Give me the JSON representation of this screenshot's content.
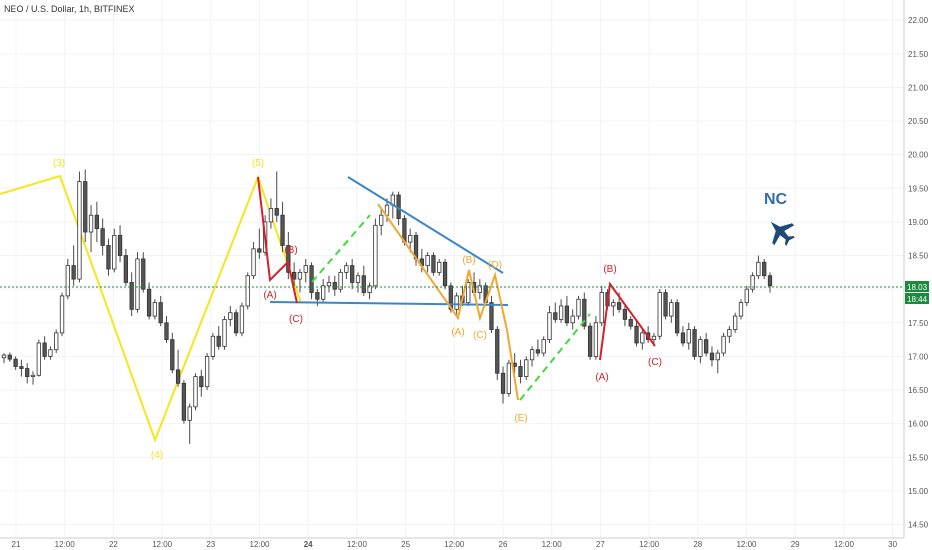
{
  "header": {
    "title": "NEO / U.S. Dollar, 1h, BITFINEX"
  },
  "chart_data": {
    "type": "candlestick",
    "title": "NEO / U.S. Dollar, 1h, BITFINEX",
    "ylim": [
      14.3,
      22.3
    ],
    "y_ticks": [
      "22.00",
      "21.50",
      "21.00",
      "20.50",
      "20.00",
      "19.50",
      "19.00",
      "18.50",
      "18.00",
      "17.50",
      "17.00",
      "16.50",
      "16.00",
      "15.50",
      "15.00",
      "14.50"
    ],
    "x_ticks": [
      "21",
      "12:00",
      "22",
      "12:00",
      "23",
      "12:00",
      "24",
      "12:00",
      "25",
      "12:00",
      "26",
      "12:00",
      "27",
      "12:00",
      "28",
      "12:00",
      "29",
      "12:00",
      "30"
    ],
    "current_price": "18.03",
    "countdown": "18:44",
    "colors": {
      "up": "#26a69a",
      "down": "#ef5350",
      "yellow": "#f5e61e",
      "red": "#d4202a",
      "orange": "#f0a830",
      "blue": "#3a86c8",
      "green": "#3fdc3f"
    },
    "candles": [
      [
        16.98,
        17.05,
        16.9,
        17.02
      ],
      [
        17.02,
        17.06,
        16.92,
        16.96
      ],
      [
        16.96,
        17.0,
        16.8,
        16.85
      ],
      [
        16.85,
        16.95,
        16.7,
        16.82
      ],
      [
        16.82,
        16.9,
        16.6,
        16.7
      ],
      [
        16.7,
        16.78,
        16.58,
        16.72
      ],
      [
        16.72,
        17.25,
        16.7,
        17.2
      ],
      [
        17.2,
        17.3,
        16.95,
        17.0
      ],
      [
        17.0,
        17.15,
        16.95,
        17.1
      ],
      [
        17.1,
        17.4,
        17.05,
        17.35
      ],
      [
        17.35,
        17.95,
        17.3,
        17.9
      ],
      [
        17.9,
        18.45,
        17.85,
        18.35
      ],
      [
        18.35,
        18.65,
        18.05,
        18.15
      ],
      [
        18.15,
        19.75,
        18.1,
        19.6
      ],
      [
        19.6,
        19.78,
        18.7,
        18.85
      ],
      [
        18.85,
        19.25,
        18.55,
        19.1
      ],
      [
        19.1,
        19.3,
        18.7,
        18.9
      ],
      [
        18.9,
        19.05,
        18.5,
        18.65
      ],
      [
        18.65,
        18.75,
        18.2,
        18.3
      ],
      [
        18.3,
        18.9,
        18.25,
        18.8
      ],
      [
        18.8,
        18.95,
        18.4,
        18.5
      ],
      [
        18.5,
        18.6,
        18.05,
        18.1
      ],
      [
        18.1,
        18.25,
        17.6,
        17.7
      ],
      [
        17.7,
        18.55,
        17.65,
        18.45
      ],
      [
        18.45,
        18.55,
        17.95,
        18.0
      ],
      [
        18.0,
        18.1,
        17.55,
        17.6
      ],
      [
        17.6,
        17.85,
        17.55,
        17.8
      ],
      [
        17.8,
        17.9,
        17.45,
        17.5
      ],
      [
        17.5,
        17.6,
        17.2,
        17.25
      ],
      [
        17.25,
        17.35,
        16.75,
        16.8
      ],
      [
        16.8,
        17.1,
        16.55,
        16.6
      ],
      [
        16.6,
        16.65,
        16.0,
        16.05
      ],
      [
        16.05,
        16.3,
        15.7,
        16.25
      ],
      [
        16.25,
        16.75,
        16.2,
        16.7
      ],
      [
        16.7,
        16.8,
        16.4,
        16.55
      ],
      [
        16.55,
        17.05,
        16.5,
        17.0
      ],
      [
        17.0,
        17.35,
        16.95,
        17.3
      ],
      [
        17.3,
        17.45,
        17.1,
        17.15
      ],
      [
        17.15,
        17.6,
        17.1,
        17.55
      ],
      [
        17.55,
        17.75,
        17.45,
        17.65
      ],
      [
        17.65,
        17.7,
        17.3,
        17.35
      ],
      [
        17.35,
        17.8,
        17.3,
        17.75
      ],
      [
        17.75,
        18.25,
        17.7,
        18.2
      ],
      [
        18.2,
        18.7,
        18.15,
        18.6
      ],
      [
        18.6,
        18.9,
        18.45,
        18.55
      ],
      [
        18.55,
        19.1,
        18.5,
        19.0
      ],
      [
        19.0,
        19.35,
        18.9,
        19.2
      ],
      [
        19.2,
        19.75,
        19.0,
        19.1
      ],
      [
        19.1,
        19.3,
        18.55,
        18.65
      ],
      [
        18.65,
        18.85,
        18.15,
        18.25
      ],
      [
        18.25,
        18.4,
        18.05,
        18.15
      ],
      [
        18.15,
        18.3,
        17.95,
        18.25
      ],
      [
        18.25,
        18.45,
        18.1,
        18.35
      ],
      [
        18.35,
        18.4,
        17.85,
        17.95
      ],
      [
        17.95,
        18.0,
        17.75,
        17.85
      ],
      [
        17.85,
        18.15,
        17.8,
        18.05
      ],
      [
        18.05,
        18.2,
        17.95,
        18.1
      ],
      [
        18.1,
        18.2,
        17.9,
        18.0
      ],
      [
        18.0,
        18.3,
        17.95,
        18.25
      ],
      [
        18.25,
        18.4,
        18.15,
        18.35
      ],
      [
        18.35,
        18.45,
        18.0,
        18.1
      ],
      [
        18.1,
        18.25,
        17.95,
        18.2
      ],
      [
        18.2,
        18.35,
        17.9,
        17.95
      ],
      [
        17.95,
        18.1,
        17.85,
        18.05
      ],
      [
        18.05,
        19.05,
        18.0,
        18.95
      ],
      [
        18.95,
        19.2,
        18.8,
        19.1
      ],
      [
        19.1,
        19.35,
        19.0,
        19.25
      ],
      [
        19.25,
        19.45,
        19.05,
        19.4
      ],
      [
        19.4,
        19.45,
        18.95,
        19.05
      ],
      [
        19.05,
        19.1,
        18.65,
        18.7
      ],
      [
        18.7,
        18.9,
        18.55,
        18.8
      ],
      [
        18.8,
        18.85,
        18.35,
        18.45
      ],
      [
        18.45,
        18.6,
        18.25,
        18.35
      ],
      [
        18.35,
        18.55,
        18.25,
        18.5
      ],
      [
        18.5,
        18.55,
        18.2,
        18.25
      ],
      [
        18.25,
        18.45,
        18.2,
        18.4
      ],
      [
        18.4,
        18.45,
        18.0,
        18.05
      ],
      [
        18.05,
        18.1,
        17.65,
        17.7
      ],
      [
        17.7,
        17.95,
        17.6,
        17.9
      ],
      [
        17.9,
        18.05,
        17.75,
        17.8
      ],
      [
        17.8,
        18.15,
        17.75,
        18.1
      ],
      [
        18.1,
        18.25,
        17.9,
        17.95
      ],
      [
        17.95,
        18.15,
        17.85,
        18.05
      ],
      [
        18.05,
        18.1,
        17.75,
        17.8
      ],
      [
        17.8,
        17.9,
        17.35,
        17.4
      ],
      [
        17.4,
        17.45,
        16.65,
        16.75
      ],
      [
        16.75,
        16.85,
        16.3,
        16.45
      ],
      [
        16.45,
        16.95,
        16.4,
        16.9
      ],
      [
        16.9,
        17.05,
        16.75,
        16.85
      ],
      [
        16.85,
        16.95,
        16.6,
        16.7
      ],
      [
        16.7,
        17.0,
        16.65,
        16.95
      ],
      [
        16.95,
        17.15,
        16.85,
        17.1
      ],
      [
        17.1,
        17.25,
        17.0,
        17.05
      ],
      [
        17.05,
        17.3,
        17.0,
        17.25
      ],
      [
        17.25,
        17.75,
        17.2,
        17.65
      ],
      [
        17.65,
        17.8,
        17.5,
        17.55
      ],
      [
        17.55,
        17.85,
        17.5,
        17.75
      ],
      [
        17.75,
        17.9,
        17.45,
        17.5
      ],
      [
        17.5,
        17.7,
        17.4,
        17.6
      ],
      [
        17.6,
        17.9,
        17.55,
        17.85
      ],
      [
        17.85,
        17.95,
        17.4,
        17.45
      ],
      [
        17.45,
        17.5,
        16.95,
        17.0
      ],
      [
        17.0,
        17.6,
        16.95,
        17.5
      ],
      [
        17.5,
        18.05,
        17.45,
        17.95
      ],
      [
        17.95,
        18.0,
        17.7,
        17.75
      ],
      [
        17.75,
        17.85,
        17.6,
        17.8
      ],
      [
        17.8,
        17.95,
        17.65,
        17.7
      ],
      [
        17.7,
        17.75,
        17.45,
        17.55
      ],
      [
        17.55,
        17.6,
        17.4,
        17.45
      ],
      [
        17.45,
        17.55,
        17.15,
        17.2
      ],
      [
        17.2,
        17.4,
        17.1,
        17.35
      ],
      [
        17.35,
        17.45,
        17.2,
        17.25
      ],
      [
        17.25,
        17.35,
        17.15,
        17.3
      ],
      [
        17.3,
        18.0,
        17.25,
        17.95
      ],
      [
        17.95,
        18.0,
        17.55,
        17.6
      ],
      [
        17.6,
        17.85,
        17.5,
        17.8
      ],
      [
        17.8,
        17.85,
        17.3,
        17.35
      ],
      [
        17.35,
        17.45,
        17.15,
        17.2
      ],
      [
        17.2,
        17.5,
        17.1,
        17.4
      ],
      [
        17.4,
        17.45,
        16.95,
        17.0
      ],
      [
        17.0,
        17.3,
        16.9,
        17.25
      ],
      [
        17.25,
        17.35,
        17.0,
        17.05
      ],
      [
        17.05,
        17.15,
        16.85,
        16.95
      ],
      [
        16.95,
        17.1,
        16.75,
        17.05
      ],
      [
        17.05,
        17.35,
        17.0,
        17.3
      ],
      [
        17.3,
        17.45,
        17.2,
        17.4
      ],
      [
        17.4,
        17.65,
        17.35,
        17.6
      ],
      [
        17.6,
        17.85,
        17.55,
        17.8
      ],
      [
        17.8,
        18.05,
        17.75,
        18.0
      ],
      [
        18.0,
        18.25,
        17.95,
        18.2
      ],
      [
        18.2,
        18.5,
        18.15,
        18.4
      ],
      [
        18.4,
        18.45,
        18.15,
        18.2
      ],
      [
        18.2,
        18.25,
        17.95,
        18.05
      ]
    ],
    "wave_labels": [
      {
        "text": "(3)",
        "color": "yellow"
      },
      {
        "text": "(5)",
        "color": "yellow"
      },
      {
        "text": "(4)",
        "color": "yellow"
      },
      {
        "text": "(B)",
        "color": "red"
      },
      {
        "text": "(A)",
        "color": "red"
      },
      {
        "text": "(C)",
        "color": "red"
      },
      {
        "text": "(B)",
        "color": "orange"
      },
      {
        "text": "(D)",
        "color": "orange"
      },
      {
        "text": "(A)",
        "color": "orange"
      },
      {
        "text": "(C)",
        "color": "orange"
      },
      {
        "text": "(E)",
        "color": "orange"
      },
      {
        "text": "(B)",
        "color": "red"
      },
      {
        "text": "(A)",
        "color": "red"
      },
      {
        "text": "(C)",
        "color": "red"
      }
    ],
    "annotation": "NC"
  }
}
